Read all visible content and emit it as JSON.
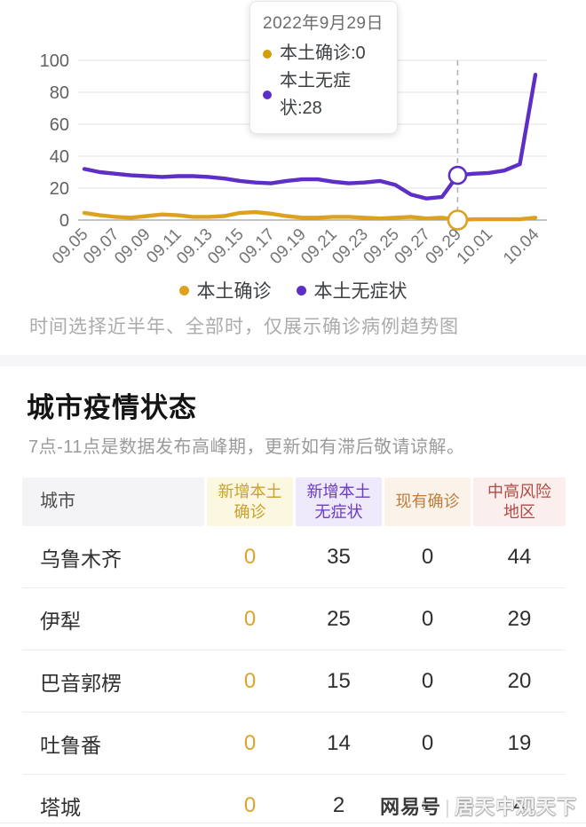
{
  "chart": {
    "tooltip": {
      "title": "2022年9月29日",
      "items": [
        {
          "label": "本土确诊",
          "value": "0",
          "color": "#D29E0C"
        },
        {
          "label": "本土无症状",
          "value": "28",
          "color": "#5E2FC7"
        }
      ]
    },
    "legend": [
      {
        "label": "本土确诊",
        "color": "#DCA11F"
      },
      {
        "label": "本土无症状",
        "color": "#5E2FC7"
      }
    ],
    "note": "时间选择近半年、全部时，仅展示确诊病例趋势图"
  },
  "chart_data": {
    "type": "line",
    "title": "",
    "xlabel": "",
    "ylabel": "",
    "ylim": [
      0,
      100
    ],
    "yticks": [
      0,
      20,
      40,
      60,
      80,
      100
    ],
    "grid": "horizontal",
    "legend_position": "bottom",
    "x_tick_labels": [
      {
        "index": 0,
        "label": "09.05"
      },
      {
        "index": 2,
        "label": "09.07"
      },
      {
        "index": 4,
        "label": "09.09"
      },
      {
        "index": 6,
        "label": "09.11"
      },
      {
        "index": 8,
        "label": "09.13"
      },
      {
        "index": 10,
        "label": "09.15"
      },
      {
        "index": 12,
        "label": "09.17"
      },
      {
        "index": 14,
        "label": "09.19"
      },
      {
        "index": 16,
        "label": "09.21"
      },
      {
        "index": 18,
        "label": "09.23"
      },
      {
        "index": 20,
        "label": "09.25"
      },
      {
        "index": 22,
        "label": "09.27"
      },
      {
        "index": 24,
        "label": "09.29"
      },
      {
        "index": 26,
        "label": "10.01"
      },
      {
        "index": 29,
        "label": "10.04"
      }
    ],
    "series": [
      {
        "name": "本土确诊",
        "color": "#DCA11F",
        "values": [
          4.5,
          3,
          2,
          1.5,
          2.5,
          3.5,
          3,
          2,
          2,
          2.5,
          4.5,
          5,
          4,
          2.5,
          1.5,
          1.5,
          2,
          2,
          1.5,
          1,
          1.5,
          2,
          1,
          1.5,
          0,
          0.5,
          0.5,
          0.5,
          0.5,
          1.5
        ]
      },
      {
        "name": "本土无症状",
        "color": "#5E2FC7",
        "values": [
          32,
          30,
          29,
          28,
          27.5,
          27,
          27.5,
          27.5,
          27,
          26,
          24.5,
          23.5,
          23,
          24.5,
          25.5,
          25.5,
          24,
          23,
          23.5,
          24.5,
          22,
          16,
          13.5,
          14.5,
          28,
          29,
          29.5,
          31,
          35,
          91
        ]
      }
    ],
    "highlight": {
      "index": 24,
      "date": "2022年9月29日",
      "marked_values": {
        "本土确诊": 0,
        "本土无症状": 28
      }
    }
  },
  "section": {
    "title": "城市疫情状态",
    "subtitle": "7点-11点是数据发布高峰期，更新如有滞后敬请谅解。"
  },
  "table": {
    "columns": [
      {
        "label": "城市",
        "bg": "#F4F4F6",
        "fg": "#4B4B4B"
      },
      {
        "label": "新增本土\n确诊",
        "bg": "#FCF7E1",
        "fg": "#C9A12B"
      },
      {
        "label": "新增本土\n无症状",
        "bg": "#EEE9FB",
        "fg": "#6A3BC4"
      },
      {
        "label": "现有确诊",
        "bg": "#FBF3E9",
        "fg": "#C07C3C"
      },
      {
        "label": "中高风险\n地区",
        "bg": "#FBEFED",
        "fg": "#B04A42"
      }
    ],
    "accent_value_color": "#DFA32C",
    "rows": [
      {
        "city": "乌鲁木齐",
        "values": [
          "0",
          "35",
          "0",
          "44"
        ]
      },
      {
        "city": "伊犁",
        "values": [
          "0",
          "25",
          "0",
          "29"
        ]
      },
      {
        "city": "巴音郭楞",
        "values": [
          "0",
          "15",
          "0",
          "20"
        ]
      },
      {
        "city": "吐鲁番",
        "values": [
          "0",
          "14",
          "0",
          "19"
        ]
      },
      {
        "city": "塔城",
        "values": [
          "0",
          "2",
          "0",
          "4"
        ]
      }
    ]
  },
  "watermark": {
    "brand": "网易号",
    "separator": "|",
    "author": "居天中观天下"
  }
}
